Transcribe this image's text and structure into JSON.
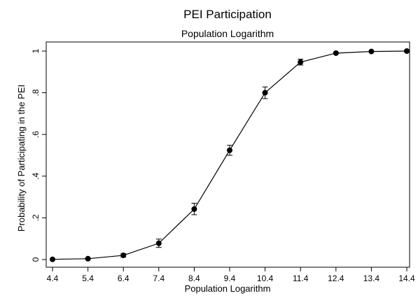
{
  "chart_data": {
    "type": "line",
    "title": "PEI Participation",
    "subtitle": "Population Logarithm",
    "xlabel": "Population Logarithm",
    "ylabel": "Probability of Participating in the PEI",
    "x_ticks": [
      "4.4",
      "5.4",
      "6.4",
      "7.4",
      "8.4",
      "9.4",
      "10.4",
      "11.4",
      "12.4",
      "13.4",
      "14.4"
    ],
    "y_ticks": [
      "0",
      ".2",
      ".4",
      ".6",
      ".8",
      "1"
    ],
    "xlim": [
      4.4,
      14.4
    ],
    "ylim": [
      0,
      1
    ],
    "grid": false,
    "series": [
      {
        "x": [
          4.4,
          5.4,
          6.4,
          7.4,
          8.4,
          9.4,
          10.4,
          11.4,
          12.4,
          13.4,
          14.4
        ],
        "values": [
          0.001,
          0.004,
          0.02,
          0.078,
          0.242,
          0.524,
          0.8,
          0.947,
          0.99,
          0.998,
          1.0
        ],
        "ci_low": [
          0.0,
          0.001,
          0.012,
          0.058,
          0.215,
          0.5,
          0.772,
          0.933,
          0.987,
          0.997,
          0.999
        ],
        "ci_high": [
          0.002,
          0.007,
          0.028,
          0.098,
          0.27,
          0.548,
          0.828,
          0.961,
          0.993,
          0.999,
          1.0
        ]
      }
    ]
  },
  "colors": {
    "background": "#ffffff",
    "line": "#000000",
    "marker": "#000000"
  }
}
